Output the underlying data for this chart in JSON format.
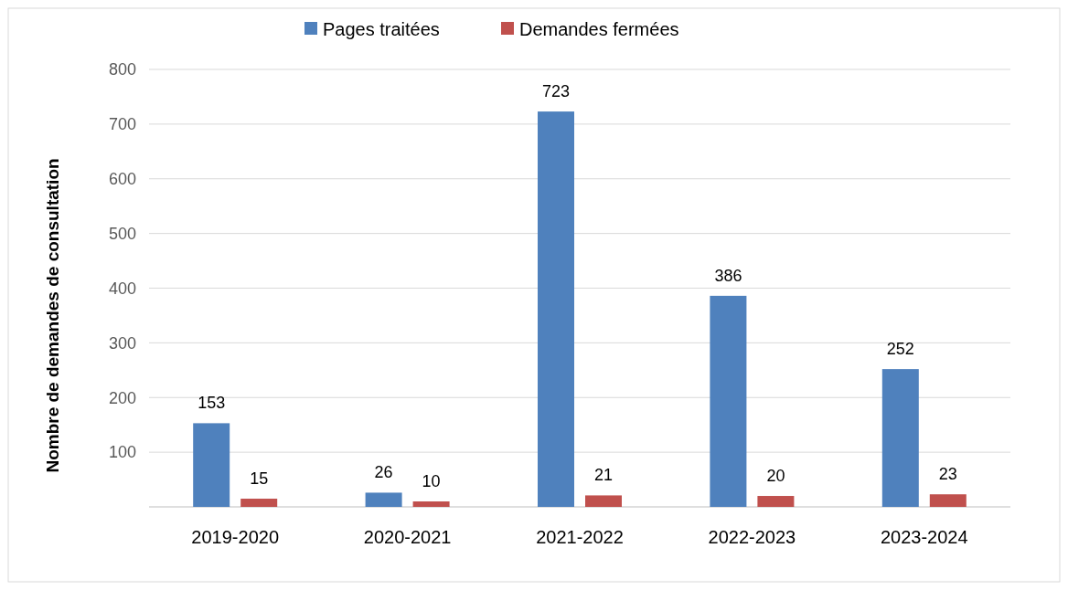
{
  "chart_data": {
    "type": "bar",
    "ylabel": "Nombre de demandes de consultation",
    "categories": [
      "2019-2020",
      "2020-2021",
      "2021-2022",
      "2022-2023",
      "2023-2024"
    ],
    "series": [
      {
        "name": "Pages traitées",
        "color": "#4f81bd",
        "values": [
          153,
          26,
          723,
          386,
          252
        ]
      },
      {
        "name": "Demandes fermées",
        "color": "#c0504d",
        "values": [
          15,
          10,
          21,
          20,
          23
        ]
      }
    ],
    "ylim": [
      0,
      800
    ],
    "yticks": [
      {
        "value": 0,
        "label": null
      },
      100,
      200,
      300,
      400,
      500,
      600,
      700,
      800
    ],
    "grid": "y",
    "legend": "top",
    "data_labels": true
  }
}
